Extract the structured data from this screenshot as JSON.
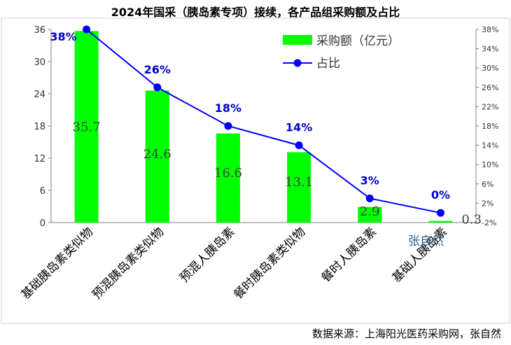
{
  "title": "2024年国采（胰岛素专项）接续，各产品组采购额及占比",
  "source": "数据来源：上海阳光医药采购网，张自然",
  "watermark": "张自然",
  "chart_data": {
    "type": "bar",
    "categories": [
      "基础胰岛素类似物",
      "预混胰岛素类似物",
      "预混人胰岛素",
      "餐时胰岛素类似物",
      "餐时人胰岛素",
      "基础人胰岛素"
    ],
    "series": [
      {
        "name": "采购额（亿元）",
        "type": "bar",
        "axis": "left",
        "color": "#00ff00",
        "values": [
          35.7,
          24.6,
          16.6,
          13.1,
          2.9,
          0.3
        ],
        "labels": [
          "35.7",
          "24.6",
          "16.6",
          "13.1",
          "2.9",
          "0.3"
        ]
      },
      {
        "name": "占比",
        "type": "line",
        "axis": "right",
        "color": "#0000ff",
        "values": [
          38,
          26,
          18,
          14,
          3,
          0
        ],
        "labels": [
          "38%",
          "26%",
          "18%",
          "14%",
          "3%",
          "0%"
        ]
      }
    ],
    "y_left": {
      "min": 0,
      "max": 36,
      "ticks": [
        "0",
        "6",
        "12",
        "18",
        "24",
        "30",
        "36"
      ]
    },
    "y_right": {
      "min": -2,
      "max": 38,
      "ticks": [
        "-2%",
        "2%",
        "6%",
        "10%",
        "14%",
        "18%",
        "22%",
        "26%",
        "30%",
        "34%",
        "38%"
      ]
    },
    "legend": "top-right",
    "grid": false
  }
}
